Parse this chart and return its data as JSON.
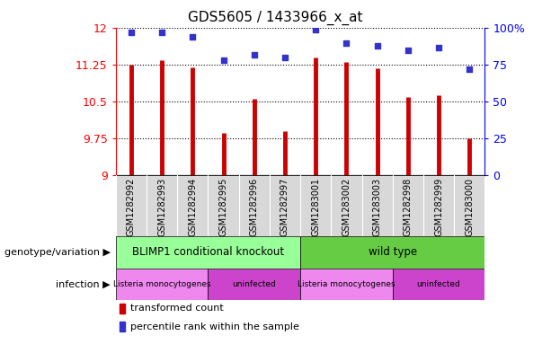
{
  "title": "GDS5605 / 1433966_x_at",
  "samples": [
    "GSM1282992",
    "GSM1282993",
    "GSM1282994",
    "GSM1282995",
    "GSM1282996",
    "GSM1282997",
    "GSM1283001",
    "GSM1283002",
    "GSM1283003",
    "GSM1282998",
    "GSM1282999",
    "GSM1283000"
  ],
  "bar_values": [
    11.25,
    11.35,
    11.2,
    9.85,
    10.55,
    9.9,
    11.4,
    11.3,
    11.18,
    10.6,
    10.62,
    9.75
  ],
  "dot_values": [
    97,
    97,
    94,
    78,
    82,
    80,
    99,
    90,
    88,
    85,
    87,
    72
  ],
  "y_min": 9.0,
  "y_max": 12.0,
  "y_ticks": [
    9.0,
    9.75,
    10.5,
    11.25,
    12.0
  ],
  "y_tick_labels": [
    "9",
    "9.75",
    "10.5",
    "11.25",
    "12"
  ],
  "right_y_ticks": [
    0,
    25,
    50,
    75,
    100
  ],
  "right_y_labels": [
    "0",
    "25",
    "50",
    "75",
    "100%"
  ],
  "bar_color": "#cc0000",
  "dot_color": "#3333cc",
  "plot_bg": "#ffffff",
  "sample_bg": "#d8d8d8",
  "genotype_groups": [
    {
      "label": "BLIMP1 conditional knockout",
      "start": 0,
      "end": 6,
      "color": "#99ff99"
    },
    {
      "label": "wild type",
      "start": 6,
      "end": 12,
      "color": "#66cc44"
    }
  ],
  "infection_groups": [
    {
      "label": "Listeria monocytogenes",
      "start": 0,
      "end": 3,
      "color": "#ee88ee"
    },
    {
      "label": "uninfected",
      "start": 3,
      "end": 6,
      "color": "#cc44cc"
    },
    {
      "label": "Listeria monocytogenes",
      "start": 6,
      "end": 9,
      "color": "#ee88ee"
    },
    {
      "label": "uninfected",
      "start": 9,
      "end": 12,
      "color": "#cc44cc"
    }
  ],
  "legend_items": [
    {
      "label": "transformed count",
      "color": "#cc0000"
    },
    {
      "label": "percentile rank within the sample",
      "color": "#3333cc"
    }
  ],
  "xlabel_genotype": "genotype/variation",
  "xlabel_infection": "infection",
  "fig_width": 6.13,
  "fig_height": 3.93,
  "dpi": 100
}
